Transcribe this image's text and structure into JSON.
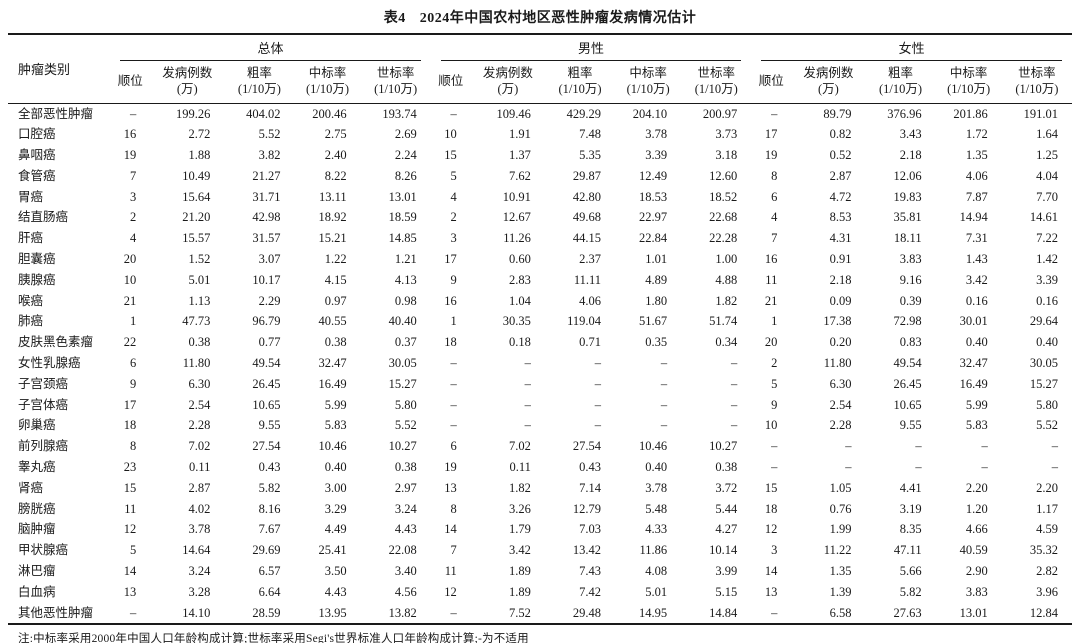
{
  "title": {
    "label": "表4",
    "text": "2024年中国农村地区恶性肿瘤发病情况估计"
  },
  "table": {
    "row_header": "肿瘤类别",
    "groups": [
      {
        "label": "总体",
        "columns": [
          "顺位",
          "发病例数\n(万)",
          "粗率\n(1/10万)",
          "中标率\n(1/10万)",
          "世标率\n(1/10万)"
        ]
      },
      {
        "label": "男性",
        "columns": [
          "顺位",
          "发病例数\n(万)",
          "粗率\n(1/10万)",
          "中标率\n(1/10万)",
          "世标率\n(1/10万)"
        ]
      },
      {
        "label": "女性",
        "columns": [
          "顺位",
          "发病例数\n(万)",
          "粗率\n(1/10万)",
          "中标率\n(1/10万)",
          "世标率\n(1/10万)"
        ]
      }
    ],
    "rows": [
      {
        "name": "全部恶性肿瘤",
        "overall": [
          "–",
          "199.26",
          "404.02",
          "200.46",
          "193.74"
        ],
        "male": [
          "–",
          "109.46",
          "429.29",
          "204.10",
          "200.97"
        ],
        "female": [
          "–",
          "89.79",
          "376.96",
          "201.86",
          "191.01"
        ]
      },
      {
        "name": "口腔癌",
        "overall": [
          "16",
          "2.72",
          "5.52",
          "2.75",
          "2.69"
        ],
        "male": [
          "10",
          "1.91",
          "7.48",
          "3.78",
          "3.73"
        ],
        "female": [
          "17",
          "0.82",
          "3.43",
          "1.72",
          "1.64"
        ]
      },
      {
        "name": "鼻咽癌",
        "overall": [
          "19",
          "1.88",
          "3.82",
          "2.40",
          "2.24"
        ],
        "male": [
          "15",
          "1.37",
          "5.35",
          "3.39",
          "3.18"
        ],
        "female": [
          "19",
          "0.52",
          "2.18",
          "1.35",
          "1.25"
        ]
      },
      {
        "name": "食管癌",
        "overall": [
          "7",
          "10.49",
          "21.27",
          "8.22",
          "8.26"
        ],
        "male": [
          "5",
          "7.62",
          "29.87",
          "12.49",
          "12.60"
        ],
        "female": [
          "8",
          "2.87",
          "12.06",
          "4.06",
          "4.04"
        ]
      },
      {
        "name": "胃癌",
        "overall": [
          "3",
          "15.64",
          "31.71",
          "13.11",
          "13.01"
        ],
        "male": [
          "4",
          "10.91",
          "42.80",
          "18.53",
          "18.52"
        ],
        "female": [
          "6",
          "4.72",
          "19.83",
          "7.87",
          "7.70"
        ]
      },
      {
        "name": "结直肠癌",
        "overall": [
          "2",
          "21.20",
          "42.98",
          "18.92",
          "18.59"
        ],
        "male": [
          "2",
          "12.67",
          "49.68",
          "22.97",
          "22.68"
        ],
        "female": [
          "4",
          "8.53",
          "35.81",
          "14.94",
          "14.61"
        ]
      },
      {
        "name": "肝癌",
        "overall": [
          "4",
          "15.57",
          "31.57",
          "15.21",
          "14.85"
        ],
        "male": [
          "3",
          "11.26",
          "44.15",
          "22.84",
          "22.28"
        ],
        "female": [
          "7",
          "4.31",
          "18.11",
          "7.31",
          "7.22"
        ]
      },
      {
        "name": "胆囊癌",
        "overall": [
          "20",
          "1.52",
          "3.07",
          "1.22",
          "1.21"
        ],
        "male": [
          "17",
          "0.60",
          "2.37",
          "1.01",
          "1.00"
        ],
        "female": [
          "16",
          "0.91",
          "3.83",
          "1.43",
          "1.42"
        ]
      },
      {
        "name": "胰腺癌",
        "overall": [
          "10",
          "5.01",
          "10.17",
          "4.15",
          "4.13"
        ],
        "male": [
          "9",
          "2.83",
          "11.11",
          "4.89",
          "4.88"
        ],
        "female": [
          "11",
          "2.18",
          "9.16",
          "3.42",
          "3.39"
        ]
      },
      {
        "name": "喉癌",
        "overall": [
          "21",
          "1.13",
          "2.29",
          "0.97",
          "0.98"
        ],
        "male": [
          "16",
          "1.04",
          "4.06",
          "1.80",
          "1.82"
        ],
        "female": [
          "21",
          "0.09",
          "0.39",
          "0.16",
          "0.16"
        ]
      },
      {
        "name": "肺癌",
        "overall": [
          "1",
          "47.73",
          "96.79",
          "40.55",
          "40.40"
        ],
        "male": [
          "1",
          "30.35",
          "119.04",
          "51.67",
          "51.74"
        ],
        "female": [
          "1",
          "17.38",
          "72.98",
          "30.01",
          "29.64"
        ]
      },
      {
        "name": "皮肤黑色素瘤",
        "overall": [
          "22",
          "0.38",
          "0.77",
          "0.38",
          "0.37"
        ],
        "male": [
          "18",
          "0.18",
          "0.71",
          "0.35",
          "0.34"
        ],
        "female": [
          "20",
          "0.20",
          "0.83",
          "0.40",
          "0.40"
        ]
      },
      {
        "name": "女性乳腺癌",
        "overall": [
          "6",
          "11.80",
          "49.54",
          "32.47",
          "30.05"
        ],
        "male": [
          "–",
          "–",
          "–",
          "–",
          "–"
        ],
        "female": [
          "2",
          "11.80",
          "49.54",
          "32.47",
          "30.05"
        ]
      },
      {
        "name": "子宫颈癌",
        "overall": [
          "9",
          "6.30",
          "26.45",
          "16.49",
          "15.27"
        ],
        "male": [
          "–",
          "–",
          "–",
          "–",
          "–"
        ],
        "female": [
          "5",
          "6.30",
          "26.45",
          "16.49",
          "15.27"
        ]
      },
      {
        "name": "子宫体癌",
        "overall": [
          "17",
          "2.54",
          "10.65",
          "5.99",
          "5.80"
        ],
        "male": [
          "–",
          "–",
          "–",
          "–",
          "–"
        ],
        "female": [
          "9",
          "2.54",
          "10.65",
          "5.99",
          "5.80"
        ]
      },
      {
        "name": "卵巢癌",
        "overall": [
          "18",
          "2.28",
          "9.55",
          "5.83",
          "5.52"
        ],
        "male": [
          "–",
          "–",
          "–",
          "–",
          "–"
        ],
        "female": [
          "10",
          "2.28",
          "9.55",
          "5.83",
          "5.52"
        ]
      },
      {
        "name": "前列腺癌",
        "overall": [
          "8",
          "7.02",
          "27.54",
          "10.46",
          "10.27"
        ],
        "male": [
          "6",
          "7.02",
          "27.54",
          "10.46",
          "10.27"
        ],
        "female": [
          "–",
          "–",
          "–",
          "–",
          "–"
        ]
      },
      {
        "name": "睾丸癌",
        "overall": [
          "23",
          "0.11",
          "0.43",
          "0.40",
          "0.38"
        ],
        "male": [
          "19",
          "0.11",
          "0.43",
          "0.40",
          "0.38"
        ],
        "female": [
          "–",
          "–",
          "–",
          "–",
          "–"
        ]
      },
      {
        "name": "肾癌",
        "overall": [
          "15",
          "2.87",
          "5.82",
          "3.00",
          "2.97"
        ],
        "male": [
          "13",
          "1.82",
          "7.14",
          "3.78",
          "3.72"
        ],
        "female": [
          "15",
          "1.05",
          "4.41",
          "2.20",
          "2.20"
        ]
      },
      {
        "name": "膀胱癌",
        "overall": [
          "11",
          "4.02",
          "8.16",
          "3.29",
          "3.24"
        ],
        "male": [
          "8",
          "3.26",
          "12.79",
          "5.48",
          "5.44"
        ],
        "female": [
          "18",
          "0.76",
          "3.19",
          "1.20",
          "1.17"
        ]
      },
      {
        "name": "脑肿瘤",
        "overall": [
          "12",
          "3.78",
          "7.67",
          "4.49",
          "4.43"
        ],
        "male": [
          "14",
          "1.79",
          "7.03",
          "4.33",
          "4.27"
        ],
        "female": [
          "12",
          "1.99",
          "8.35",
          "4.66",
          "4.59"
        ]
      },
      {
        "name": "甲状腺癌",
        "overall": [
          "5",
          "14.64",
          "29.69",
          "25.41",
          "22.08"
        ],
        "male": [
          "7",
          "3.42",
          "13.42",
          "11.86",
          "10.14"
        ],
        "female": [
          "3",
          "11.22",
          "47.11",
          "40.59",
          "35.32"
        ]
      },
      {
        "name": "淋巴瘤",
        "overall": [
          "14",
          "3.24",
          "6.57",
          "3.50",
          "3.40"
        ],
        "male": [
          "11",
          "1.89",
          "7.43",
          "4.08",
          "3.99"
        ],
        "female": [
          "14",
          "1.35",
          "5.66",
          "2.90",
          "2.82"
        ]
      },
      {
        "name": "白血病",
        "overall": [
          "13",
          "3.28",
          "6.64",
          "4.43",
          "4.56"
        ],
        "male": [
          "12",
          "1.89",
          "7.42",
          "5.01",
          "5.15"
        ],
        "female": [
          "13",
          "1.39",
          "5.82",
          "3.83",
          "3.96"
        ]
      },
      {
        "name": "其他恶性肿瘤",
        "overall": [
          "–",
          "14.10",
          "28.59",
          "13.95",
          "13.82"
        ],
        "male": [
          "–",
          "7.52",
          "29.48",
          "14.95",
          "14.84"
        ],
        "female": [
          "–",
          "6.58",
          "27.63",
          "13.01",
          "12.84"
        ]
      }
    ]
  },
  "footnote": "注:中标率采用2000年中国人口年龄构成计算;世标率采用Segi's世界标准人口年龄构成计算;-为不适用"
}
